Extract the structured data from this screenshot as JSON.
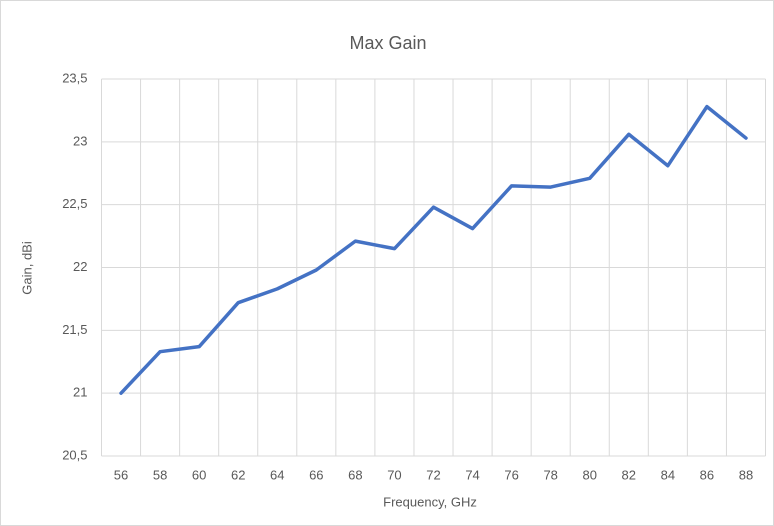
{
  "chart_data": {
    "type": "line",
    "title": "Max Gain",
    "x_label": "Frequency, GHz",
    "y_label": "Gain, dBi",
    "x": [
      56,
      58,
      60,
      62,
      64,
      66,
      68,
      70,
      72,
      74,
      76,
      78,
      80,
      82,
      84,
      86,
      88
    ],
    "series": [
      {
        "name": "Max Gain",
        "color": "#4472c4",
        "values": [
          21.0,
          21.33,
          21.37,
          21.72,
          21.83,
          21.98,
          22.21,
          22.15,
          22.48,
          22.31,
          22.65,
          22.64,
          22.71,
          23.06,
          22.81,
          23.28,
          23.03
        ]
      }
    ],
    "xlim": [
      55,
      89
    ],
    "xticks": [
      56,
      58,
      60,
      62,
      64,
      66,
      68,
      70,
      72,
      74,
      76,
      78,
      80,
      82,
      84,
      86,
      88
    ],
    "ylim": [
      20.5,
      23.5
    ],
    "yticks": [
      {
        "value": 20.5,
        "label": "20,5"
      },
      21,
      {
        "value": 21.5,
        "label": "21,5"
      },
      22,
      {
        "value": 22.5,
        "label": "22,5"
      },
      23,
      {
        "value": 23.5,
        "label": "23,5"
      }
    ],
    "grid": true
  }
}
